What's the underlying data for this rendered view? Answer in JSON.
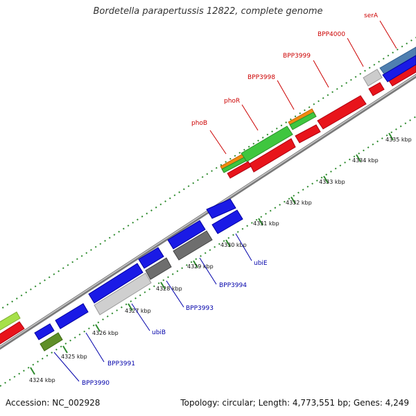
{
  "title": "Bordetella parapertussis 12822, complete genome",
  "footer": {
    "accession": "Accession: NC_002928",
    "stats": "Topology: circular; Length: 4,773,551 bp; Genes: 4,249"
  },
  "colors": {
    "backbone": "#888888",
    "forward_cds": "#e8141b",
    "reverse_cds": "#1a1ae6",
    "forward_label": "#cc0000",
    "reverse_label": "#0000aa",
    "rna_green": "#3fc63f",
    "orange": "#f08a10",
    "gray": "#bdbdbd",
    "dark_gray": "#6e6e6e",
    "olive": "#5f8f28",
    "steelblue": "#4f7fb0",
    "lime": "#a6e04a",
    "ticks": "#2e8b2e"
  },
  "ticks": [
    "4324 kbp",
    "4325 kbp",
    "4326 kbp",
    "4327 kbp",
    "4328 kbp",
    "4329 kbp",
    "4330 kbp",
    "4331 kbp",
    "4332 kbp",
    "4333 kbp",
    "4334 kbp",
    "4335 kbp"
  ],
  "top_labels": [
    "phoB",
    "phoR",
    "BPP3998",
    "BPP3999",
    "BPP4000",
    "serA"
  ],
  "bottom_labels": [
    "BPP3990",
    "BPP3991",
    "ubiB",
    "BPP3993",
    "BPP3994",
    "ubiE"
  ]
}
